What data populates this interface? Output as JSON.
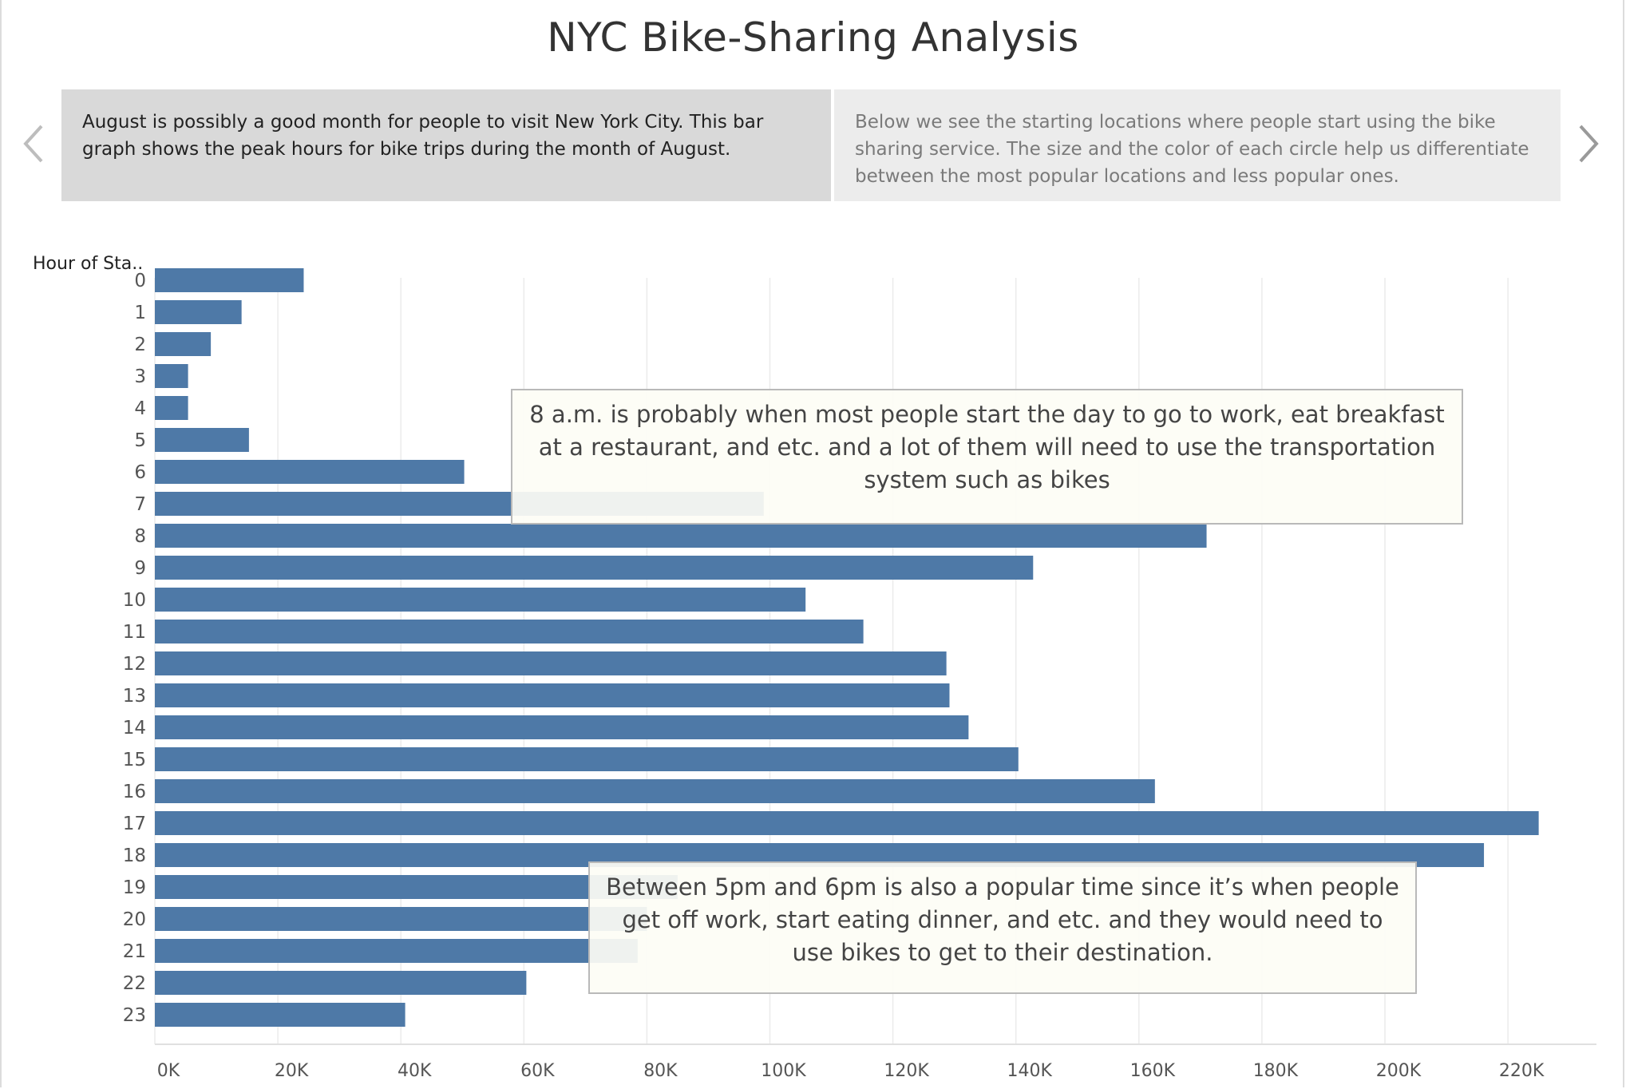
{
  "title": "NYC Bike-Sharing Analysis",
  "nav": {
    "prev_icon": "chevron-left-icon",
    "next_icon": "chevron-right-icon"
  },
  "story_points": [
    {
      "text": "August is possibly a good month for people to visit New York City. This bar graph shows the peak hours for bike trips during the month of August."
    },
    {
      "text": "Below we see the starting locations where people start using the bike sharing service. The size and the color of each circle help us differentiate between the most popular locations and less popular ones."
    }
  ],
  "annotations": [
    {
      "text": "8 a.m. is probably when most people start the day to go to work, eat breakfast at a restaurant, and etc. and a lot of them will need to use the transportation system such as bikes"
    },
    {
      "text": "Between 5pm and 6pm is also a popular time since it’s when people get off work, start eating dinner, and etc. and they would need to use bikes to get to their destination."
    }
  ],
  "colors": {
    "bar": "#4e79a7",
    "grid": "#ebebeb",
    "active_story_bg": "#d9d9d9",
    "inactive_story_bg": "#ececec"
  },
  "chart_data": {
    "type": "bar",
    "orientation": "horizontal",
    "title": "",
    "ylabel": "Hour of Sta..",
    "xlabel": "",
    "categories": [
      "0",
      "1",
      "2",
      "3",
      "4",
      "5",
      "6",
      "7",
      "8",
      "9",
      "10",
      "11",
      "12",
      "13",
      "14",
      "15",
      "16",
      "17",
      "18",
      "19",
      "20",
      "21",
      "22",
      "23"
    ],
    "values": [
      24200,
      14100,
      9100,
      5400,
      5400,
      15300,
      50300,
      99000,
      171000,
      142800,
      105800,
      115200,
      128700,
      129200,
      132300,
      140400,
      162600,
      225000,
      216100,
      85000,
      80000,
      78500,
      60400,
      40700
    ],
    "xlim": [
      0,
      235000
    ],
    "xticks": [
      0,
      20000,
      40000,
      60000,
      80000,
      100000,
      120000,
      140000,
      160000,
      180000,
      200000,
      220000
    ],
    "xtick_labels": [
      "0K",
      "20K",
      "40K",
      "60K",
      "80K",
      "100K",
      "120K",
      "140K",
      "160K",
      "180K",
      "200K",
      "220K"
    ],
    "grid": true,
    "legend": "none"
  }
}
